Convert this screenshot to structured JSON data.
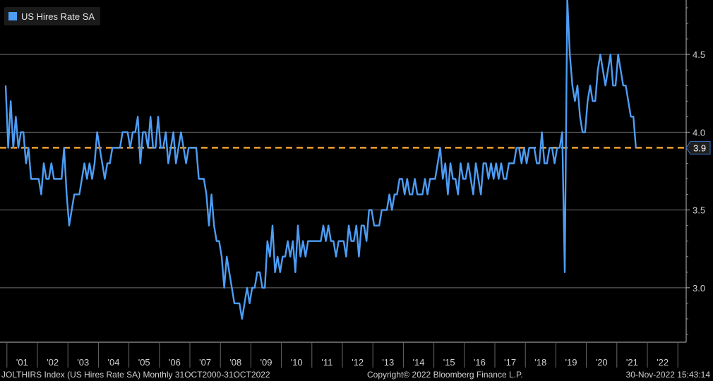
{
  "legend": {
    "label": "US Hires Rate SA",
    "color": "#4d9df5"
  },
  "footer": {
    "left": "JOLTHIRS Index (US Hires Rate SA)  Monthly 31OCT2000-31OCT2022",
    "middle": "Copyright© 2022 Bloomberg Finance L.P.",
    "right": "30-Nov-2022  15:43:14"
  },
  "chart_data": {
    "type": "line",
    "title": "",
    "xlabel": "",
    "ylabel": "",
    "frequency": "Monthly",
    "start": "2000-12",
    "x_ticks": [
      "'01",
      "'02",
      "'03",
      "'04",
      "'05",
      "'06",
      "'07",
      "'08",
      "'09",
      "'10",
      "'11",
      "'12",
      "'13",
      "'14",
      "'15",
      "'16",
      "'17",
      "'18",
      "'19",
      "'20",
      "'21",
      "'22"
    ],
    "y_ticks": [
      3.0,
      3.5,
      4.0,
      4.5
    ],
    "ylim": [
      2.65,
      4.85
    ],
    "grid": true,
    "reference_line": {
      "value": 3.9,
      "label": "3.9",
      "color": "#f0a030",
      "style": "dashed"
    },
    "legend_position": "top-left",
    "series": [
      {
        "name": "US Hires Rate SA",
        "color": "#4d9df5",
        "values": [
          4.3,
          3.9,
          4.2,
          3.9,
          4.1,
          3.9,
          4.0,
          4.0,
          3.8,
          3.9,
          3.7,
          3.7,
          3.7,
          3.7,
          3.6,
          3.8,
          3.7,
          3.7,
          3.8,
          3.7,
          3.7,
          3.7,
          3.7,
          3.9,
          3.6,
          3.4,
          3.5,
          3.6,
          3.6,
          3.6,
          3.7,
          3.8,
          3.7,
          3.8,
          3.7,
          3.8,
          4.0,
          3.9,
          3.8,
          3.7,
          3.8,
          3.8,
          3.9,
          3.9,
          3.9,
          3.9,
          4.0,
          4.0,
          4.0,
          3.9,
          4.0,
          4.0,
          4.1,
          3.8,
          4.0,
          4.0,
          3.9,
          4.1,
          3.9,
          3.9,
          4.1,
          3.9,
          3.9,
          4.0,
          3.8,
          3.9,
          4.0,
          3.8,
          3.9,
          4.0,
          3.9,
          3.8,
          3.9,
          3.9,
          3.9,
          3.9,
          3.7,
          3.7,
          3.7,
          3.6,
          3.4,
          3.6,
          3.4,
          3.3,
          3.3,
          3.2,
          3.0,
          3.2,
          3.1,
          3.0,
          2.9,
          2.9,
          2.9,
          2.8,
          2.9,
          3.0,
          2.9,
          3.0,
          3.0,
          3.1,
          3.1,
          3.0,
          3.0,
          3.3,
          3.2,
          3.4,
          3.1,
          3.2,
          3.1,
          3.2,
          3.2,
          3.3,
          3.2,
          3.3,
          3.1,
          3.4,
          3.2,
          3.3,
          3.2,
          3.3,
          3.3,
          3.3,
          3.3,
          3.3,
          3.3,
          3.4,
          3.3,
          3.4,
          3.3,
          3.3,
          3.2,
          3.3,
          3.3,
          3.3,
          3.2,
          3.4,
          3.3,
          3.3,
          3.4,
          3.2,
          3.4,
          3.4,
          3.3,
          3.5,
          3.5,
          3.4,
          3.4,
          3.4,
          3.5,
          3.5,
          3.5,
          3.6,
          3.5,
          3.6,
          3.6,
          3.7,
          3.7,
          3.6,
          3.7,
          3.6,
          3.6,
          3.7,
          3.6,
          3.6,
          3.6,
          3.7,
          3.6,
          3.7,
          3.7,
          3.7,
          3.8,
          3.9,
          3.7,
          3.8,
          3.6,
          3.8,
          3.7,
          3.7,
          3.6,
          3.8,
          3.7,
          3.7,
          3.8,
          3.7,
          3.6,
          3.8,
          3.7,
          3.6,
          3.8,
          3.8,
          3.7,
          3.8,
          3.7,
          3.8,
          3.7,
          3.8,
          3.7,
          3.7,
          3.8,
          3.8,
          3.8,
          3.9,
          3.9,
          3.8,
          3.9,
          3.8,
          3.9,
          3.9,
          3.9,
          3.8,
          3.8,
          4.0,
          3.8,
          3.8,
          3.9,
          3.9,
          3.8,
          3.9,
          3.9,
          4.0,
          3.1,
          4.9,
          4.5,
          4.3,
          4.2,
          4.3,
          4.1,
          4.0,
          4.0,
          4.2,
          4.3,
          4.2,
          4.2,
          4.4,
          4.5,
          4.4,
          4.3,
          4.4,
          4.5,
          4.3,
          4.3,
          4.5,
          4.4,
          4.3,
          4.3,
          4.2,
          4.1,
          4.1,
          3.9
        ]
      }
    ]
  }
}
